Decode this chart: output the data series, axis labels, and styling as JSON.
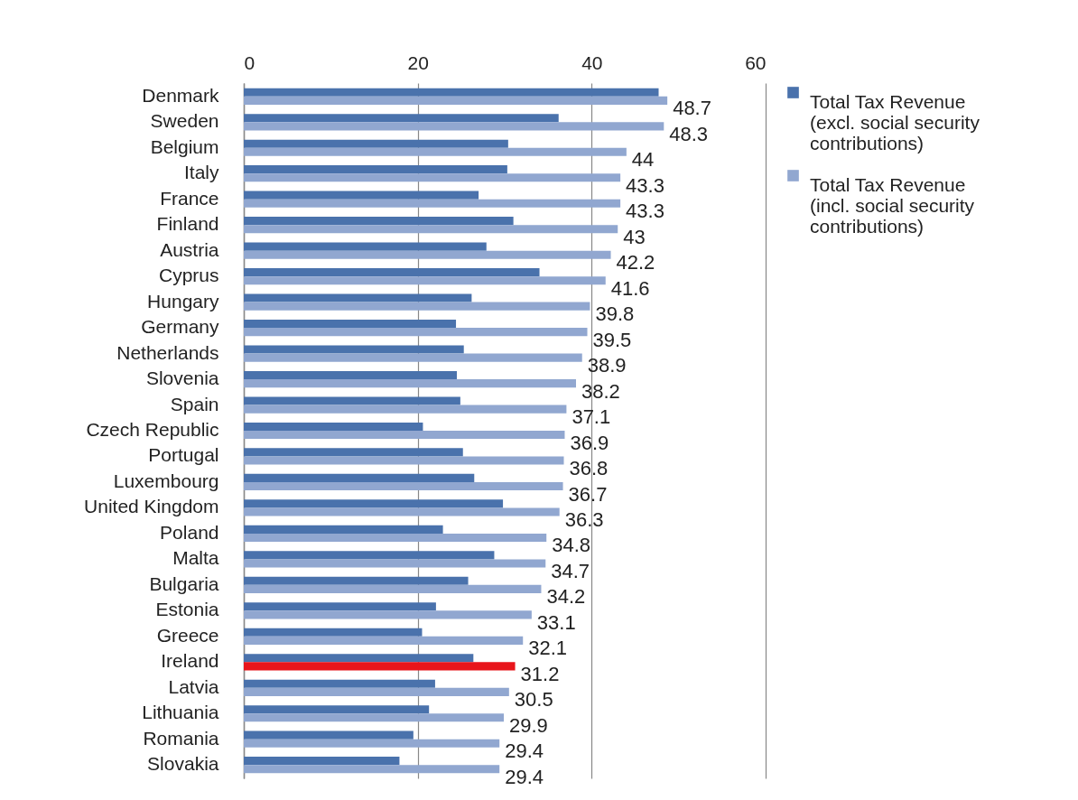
{
  "chart_data": {
    "type": "bar",
    "orientation": "horizontal",
    "categories": [
      "Denmark",
      "Sweden",
      "Belgium",
      "Italy",
      "France",
      "Finland",
      "Austria",
      "Cyprus",
      "Hungary",
      "Germany",
      "Netherlands",
      "Slovenia",
      "Spain",
      "Czech Republic",
      "Portugal",
      "Luxembourg",
      "United Kingdom",
      "Poland",
      "Malta",
      "Bulgaria",
      "Estonia",
      "Greece",
      "Ireland",
      "Latvia",
      "Lithuania",
      "Romania",
      "Slovakia"
    ],
    "series": [
      {
        "name": "Total Tax Revenue (excl. social security contributions)",
        "color": "#4a72ac",
        "values": [
          47.7,
          36.2,
          30.4,
          30.3,
          27.0,
          31.0,
          27.9,
          34.0,
          26.2,
          24.4,
          25.3,
          24.5,
          24.9,
          20.6,
          25.2,
          26.5,
          29.8,
          22.9,
          28.8,
          25.8,
          22.1,
          20.5,
          26.4,
          22.0,
          21.3,
          19.5,
          17.9
        ]
      },
      {
        "name": "Total Tax Revenue (incl. social security contributions)",
        "color": "#91a7d0",
        "colors": [
          "#91a7d0",
          "#91a7d0",
          "#91a7d0",
          "#91a7d0",
          "#91a7d0",
          "#91a7d0",
          "#91a7d0",
          "#91a7d0",
          "#91a7d0",
          "#91a7d0",
          "#91a7d0",
          "#91a7d0",
          "#91a7d0",
          "#91a7d0",
          "#91a7d0",
          "#91a7d0",
          "#91a7d0",
          "#91a7d0",
          "#91a7d0",
          "#91a7d0",
          "#91a7d0",
          "#91a7d0",
          "#e8151b",
          "#91a7d0",
          "#91a7d0",
          "#91a7d0",
          "#91a7d0"
        ],
        "values": [
          48.7,
          48.3,
          44,
          43.3,
          43.3,
          43,
          42.2,
          41.6,
          39.8,
          39.5,
          38.9,
          38.2,
          37.1,
          36.9,
          36.8,
          36.7,
          36.3,
          34.8,
          34.7,
          34.2,
          33.1,
          32.1,
          31.2,
          30.5,
          29.9,
          29.4,
          29.4
        ],
        "value_labels": [
          "48.7",
          "48.3",
          "44",
          "43.3",
          "43.3",
          "43",
          "42.2",
          "41.6",
          "39.8",
          "39.5",
          "38.9",
          "38.2",
          "37.1",
          "36.9",
          "36.8",
          "36.7",
          "36.3",
          "34.8",
          "34.7",
          "34.2",
          "33.1",
          "32.1",
          "31.2",
          "30.5",
          "29.9",
          "29.4",
          "29.4"
        ]
      }
    ],
    "xlim": [
      0,
      60
    ],
    "xticks": [
      0,
      20,
      40,
      60
    ],
    "grid": "x",
    "legend": "top right"
  }
}
